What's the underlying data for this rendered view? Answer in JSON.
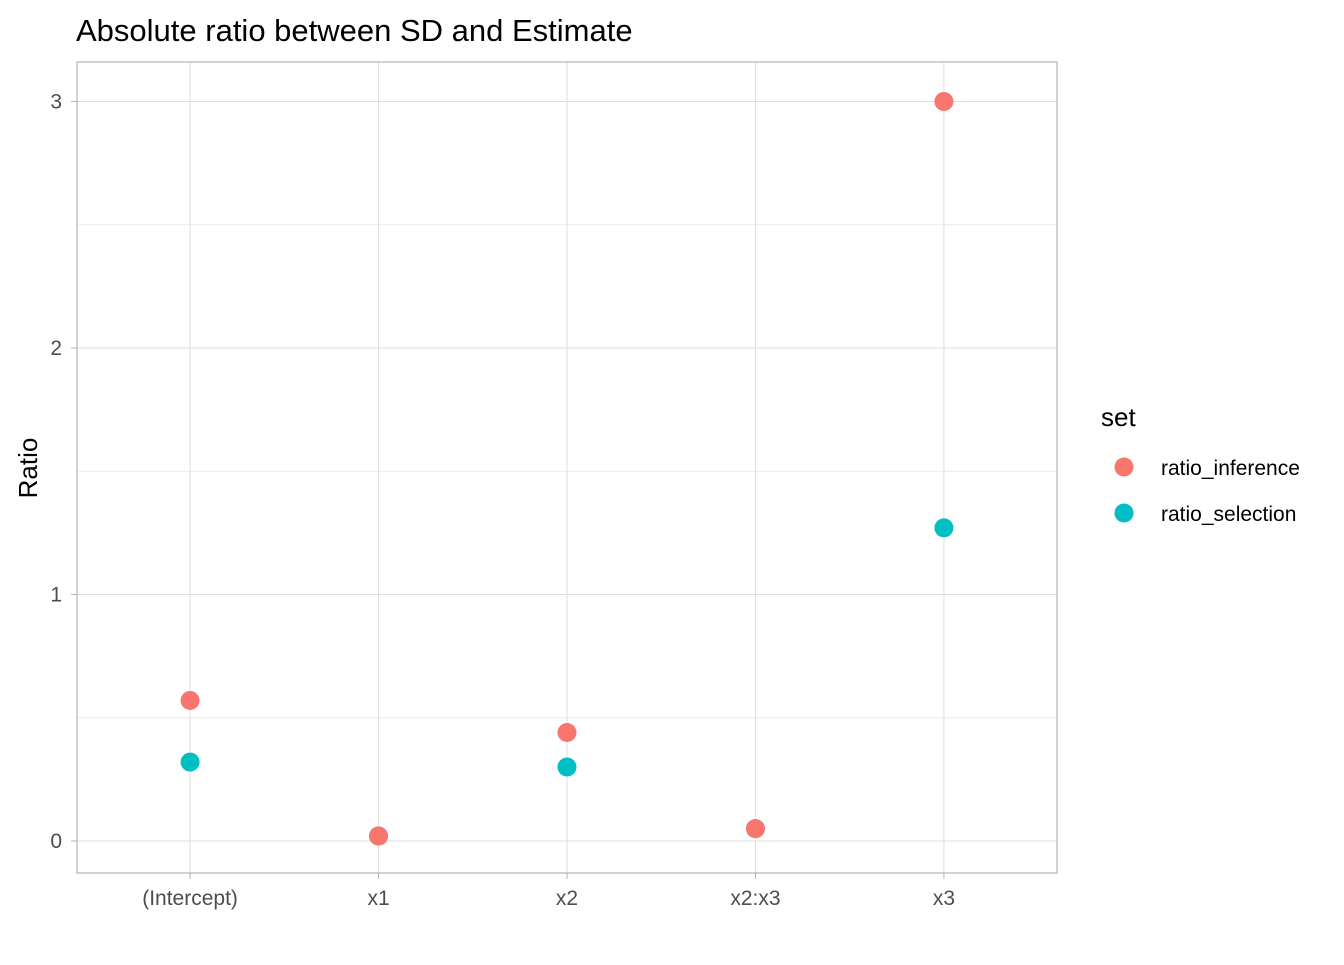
{
  "chart_data": {
    "type": "scatter",
    "title": "Absolute ratio between SD and Estimate",
    "xlabel": "",
    "ylabel": "Ratio",
    "categories": [
      "(Intercept)",
      "x1",
      "x2",
      "x2:x3",
      "x3"
    ],
    "ylim": [
      -0.13,
      3.16
    ],
    "y_ticks": [
      0,
      1,
      2,
      3
    ],
    "y_tick_labels": [
      "0",
      "1",
      "2",
      "3"
    ],
    "grid": true,
    "legend": {
      "title": "set",
      "position": "right"
    },
    "series": [
      {
        "name": "ratio_selection",
        "color": "#00BFC4",
        "values": [
          0.32,
          0.02,
          0.3,
          0.05,
          1.27
        ]
      },
      {
        "name": "ratio_inference",
        "color": "#F8766D",
        "values": [
          0.57,
          0.02,
          0.44,
          0.05,
          3.0
        ]
      }
    ],
    "legend_order": [
      "ratio_inference",
      "ratio_selection"
    ]
  }
}
